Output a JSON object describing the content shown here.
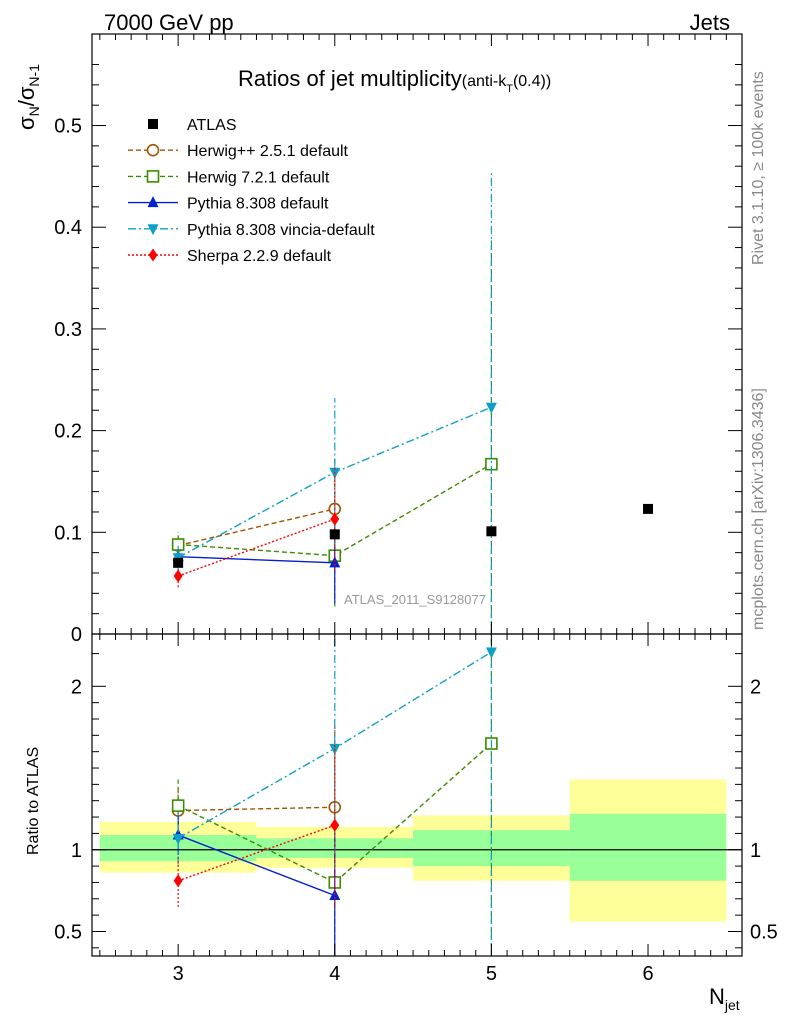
{
  "header": {
    "left": "7000 GeV pp",
    "right": "Jets",
    "side_top": "Rivet 3.1.10, ≥ 100k events",
    "side_bottom": "mcplots.cern.ch [arXiv:1306.3436]"
  },
  "chart_data": {
    "type": "line",
    "title_main": "Ratios of jet multiplicity",
    "title_sub": "(anti-k",
    "title_sub_index": "T",
    "title_sub_end": "(0.4))",
    "analysis_id": "ATLAS_2011_S9128077",
    "xlabel": "N",
    "xlabel_sub": "jet",
    "ylabel": "σ",
    "ylabel_sub1": "N",
    "ylabel_mid": "/σ",
    "ylabel_sub2": "N-1",
    "ratio_ylabel": "Ratio to ATLAS",
    "xlim": [
      2.45,
      6.6
    ],
    "ylim": [
      0,
      0.59
    ],
    "ratio_ylim": [
      0.35,
      2.32
    ],
    "x_ticks": [
      "3",
      "4",
      "5",
      "6"
    ],
    "y_ticks": [
      "0.1",
      "0.2",
      "0.3",
      "0.4",
      "0.5"
    ],
    "y_tick_zero": "0",
    "ratio_ticks": [
      "0.5",
      "1",
      "2"
    ],
    "data": {
      "name": "ATLAS",
      "x": [
        3,
        4,
        5,
        6
      ],
      "y": [
        0.07,
        0.098,
        0.101,
        0.123
      ],
      "color": "#000000"
    },
    "bands": [
      {
        "x0": 2.5,
        "x1": 3.5,
        "inner": [
          0.93,
          1.09
        ],
        "outer": [
          0.86,
          1.17
        ]
      },
      {
        "x0": 3.5,
        "x1": 4.5,
        "inner": [
          0.95,
          1.07
        ],
        "outer": [
          0.89,
          1.14
        ]
      },
      {
        "x0": 4.5,
        "x1": 5.5,
        "inner": [
          0.9,
          1.12
        ],
        "outer": [
          0.81,
          1.21
        ]
      },
      {
        "x0": 5.5,
        "x1": 6.5,
        "inner": [
          0.81,
          1.22
        ],
        "outer": [
          0.56,
          1.43
        ]
      }
    ],
    "band_colors": {
      "inner": "#99ff99",
      "outer": "#ffff99"
    },
    "series": [
      {
        "name": "Herwig++ 2.5.1 default",
        "color": "#a35200",
        "marker": "circle-open",
        "dash": "5,3",
        "x": [
          3,
          4
        ],
        "y": [
          0.087,
          0.123
        ],
        "err": [
          0.01,
          0.05
        ],
        "ratio": [
          1.24,
          1.26
        ],
        "ratio_err": [
          0.14,
          0.5
        ]
      },
      {
        "name": "Herwig 7.2.1 default",
        "color": "#3a8c00",
        "marker": "square-open",
        "dash": "5,3",
        "x": [
          3,
          4,
          5
        ],
        "y": [
          0.088,
          0.077,
          0.167
        ],
        "err": [
          0.012,
          0.05,
          0.22
        ],
        "ratio": [
          1.27,
          0.8,
          1.65
        ],
        "ratio_err": [
          0.16,
          0.5,
          2.2
        ]
      },
      {
        "name": "Pythia 8.308 default",
        "color": "#0022cc",
        "marker": "triangle-up",
        "dash": "",
        "x": [
          3,
          4
        ],
        "y": [
          0.076,
          0.07
        ],
        "err": [
          0.008,
          0.04
        ],
        "ratio": [
          1.09,
          0.72
        ],
        "ratio_err": [
          0.12,
          0.4
        ]
      },
      {
        "name": "Pythia 8.308 vincia-default",
        "color": "#0fa0c8",
        "marker": "triangle-down",
        "dash": "8,3,2,3",
        "x": [
          3,
          4,
          5
        ],
        "y": [
          0.075,
          0.159,
          0.223
        ],
        "err": [
          0.012,
          0.073,
          0.23
        ],
        "ratio": [
          1.07,
          1.62,
          2.21
        ],
        "ratio_err": [
          0.16,
          0.75,
          2.3
        ]
      },
      {
        "name": "Sherpa 2.2.9 default",
        "color": "#ff0000",
        "marker": "diamond",
        "dash": "2,2",
        "x": [
          3,
          4
        ],
        "y": [
          0.057,
          0.113
        ],
        "err": [
          0.011,
          0.05
        ],
        "ratio": [
          0.81,
          1.15
        ],
        "ratio_err": [
          0.16,
          0.5
        ]
      }
    ]
  }
}
